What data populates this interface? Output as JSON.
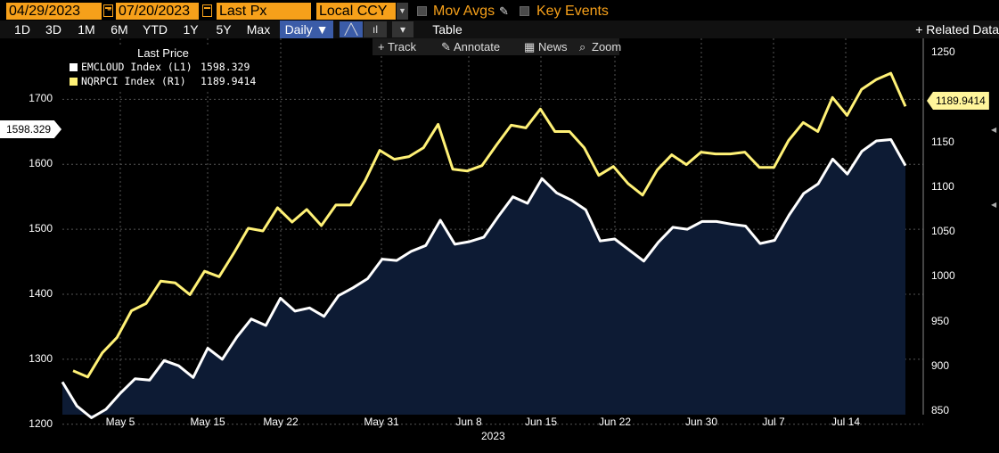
{
  "toolbar": {
    "start_date": "04/29/2023",
    "dash": "-",
    "end_date": "07/20/2023",
    "field": "Last Px",
    "currency": "Local CCY",
    "mov_avgs": "Mov Avgs",
    "key_events": "Key Events"
  },
  "periods": [
    "1D",
    "3D",
    "1M",
    "6M",
    "YTD",
    "1Y",
    "5Y",
    "Max"
  ],
  "frequency": "Daily ▼",
  "table_label": "Table",
  "related_data": "+ Related Data",
  "subtools": {
    "track": "+ Track",
    "annotate": "Annotate",
    "news": "News",
    "zoom": "Zoom"
  },
  "legend": {
    "title": "Last Price",
    "items": [
      {
        "name": "EMCLOUD Index  (L1)",
        "value": "1598.329",
        "color": "#ffffff"
      },
      {
        "name": "NQRPCI Index  (R1)",
        "value": "1189.9414",
        "color": "#fff176"
      }
    ]
  },
  "last_value_tags": {
    "left": "1598.329",
    "right": "1189.9414"
  },
  "chart_data": {
    "type": "line",
    "xlabel": "2023",
    "x_tick_labels": [
      "May 5",
      "May 15",
      "May 22",
      "May 31",
      "Jun 8",
      "Jun 15",
      "Jun 22",
      "Jun 30",
      "Jul 7",
      "Jul 14"
    ],
    "left_axis": {
      "ylim": [
        1170,
        1760
      ],
      "ticks": [
        1200,
        1300,
        1400,
        1500,
        1600,
        1700
      ]
    },
    "right_axis": {
      "ylim": [
        845,
        1262
      ],
      "ticks": [
        850,
        900,
        950,
        1000,
        1050,
        1100,
        1150,
        1200,
        1250
      ]
    },
    "grid": true,
    "series": [
      {
        "name": "EMCLOUD Index (L1)",
        "axis": "left",
        "style": "area",
        "color": "#ffffff",
        "fill": "#0d1b34",
        "values": [
          1265,
          1228,
          1210,
          1223,
          1248,
          1270,
          1268,
          1298,
          1290,
          1272,
          1317,
          1300,
          1334,
          1362,
          1352,
          1394,
          1374,
          1379,
          1366,
          1398,
          1410,
          1424,
          1454,
          1452,
          1466,
          1475,
          1514,
          1477,
          1481,
          1488,
          1520,
          1550,
          1540,
          1578,
          1556,
          1545,
          1530,
          1482,
          1485,
          1468,
          1451,
          1480,
          1503,
          1500,
          1512,
          1512,
          1508,
          1505,
          1478,
          1483,
          1522,
          1555,
          1570,
          1608,
          1585,
          1620,
          1636,
          1638,
          1598
        ]
      },
      {
        "name": "NQRPCI Index (R1)",
        "axis": "right",
        "style": "line",
        "color": "#fff176",
        "values": [
          895,
          888,
          915,
          932,
          962,
          970,
          995,
          993,
          980,
          1006,
          1000,
          1026,
          1054,
          1051,
          1077,
          1061,
          1075,
          1057,
          1080,
          1080,
          1107,
          1141,
          1131,
          1134,
          1144,
          1170,
          1120,
          1118,
          1124,
          1147,
          1169,
          1166,
          1187,
          1162,
          1162,
          1144,
          1113,
          1123,
          1104,
          1091,
          1119,
          1136,
          1125,
          1139,
          1137,
          1137,
          1139,
          1122,
          1122,
          1152,
          1172,
          1162,
          1200,
          1180,
          1209,
          1220,
          1227,
          1190
        ]
      }
    ]
  }
}
